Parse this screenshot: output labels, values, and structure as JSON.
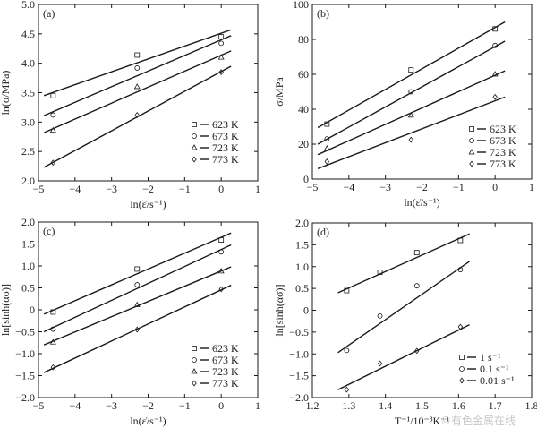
{
  "chart_data": [
    {
      "type": "scatter",
      "panel_label": "(a)",
      "xlabel": "ln(ε̇/s⁻¹)",
      "ylabel": "ln(σ/MPa)",
      "xlim": [
        -5,
        1
      ],
      "ylim": [
        2.0,
        5.0
      ],
      "xticks": [
        -5,
        -4,
        -3,
        -2,
        -1,
        0,
        1
      ],
      "xtick_labels": [
        "−5",
        "−4",
        "−3",
        "−2",
        "−1",
        "0",
        "1"
      ],
      "yticks": [
        2.0,
        2.5,
        3.0,
        3.5,
        4.0,
        4.5,
        5.0
      ],
      "ytick_labels": [
        "2.0",
        "2.5",
        "3.0",
        "3.5",
        "4.0",
        "4.5",
        "5.0"
      ],
      "legend_placement": "bottom-right",
      "x": [
        -4.6,
        -2.3,
        0
      ],
      "series": [
        {
          "name": "623 K",
          "marker": "square",
          "values": [
            3.45,
            4.14,
            4.45
          ],
          "fit": [
            [
              -4.85,
              3.45
            ],
            [
              0.27,
              4.57
            ]
          ]
        },
        {
          "name": "673 K",
          "marker": "circle",
          "values": [
            3.12,
            3.92,
            4.34
          ],
          "fit": [
            [
              -4.85,
              3.11
            ],
            [
              0.27,
              4.47
            ]
          ]
        },
        {
          "name": "723 K",
          "marker": "triangle",
          "values": [
            2.86,
            3.6,
            4.1
          ],
          "fit": [
            [
              -4.85,
              2.82
            ],
            [
              0.27,
              4.21
            ]
          ]
        },
        {
          "name": "773 K",
          "marker": "diamond",
          "values": [
            2.31,
            3.12,
            3.85
          ],
          "fit": [
            [
              -4.85,
              2.23
            ],
            [
              0.27,
              3.95
            ]
          ]
        }
      ]
    },
    {
      "type": "scatter",
      "panel_label": "(b)",
      "xlabel": "ln(ε̇/s⁻¹)",
      "ylabel": "σ/MPa",
      "xlim": [
        -5,
        1
      ],
      "ylim": [
        0,
        100
      ],
      "xticks": [
        -5,
        -4,
        -3,
        -2,
        -1,
        0,
        1
      ],
      "xtick_labels": [
        "−5",
        "−4",
        "−3",
        "−2",
        "−1",
        "0",
        "1"
      ],
      "yticks": [
        0,
        20,
        40,
        60,
        80,
        100
      ],
      "ytick_labels": [
        "0",
        "20",
        "40",
        "60",
        "80",
        "100"
      ],
      "legend_placement": "bottom-right",
      "x": [
        -4.6,
        -2.3,
        0
      ],
      "series": [
        {
          "name": "623 K",
          "marker": "square",
          "values": [
            31.5,
            62.5,
            86
          ],
          "fit": [
            [
              -4.85,
              29.5
            ],
            [
              0.27,
              90
            ]
          ]
        },
        {
          "name": "673 K",
          "marker": "circle",
          "values": [
            23,
            50,
            76.5
          ],
          "fit": [
            [
              -4.85,
              20
            ],
            [
              0.27,
              79
            ]
          ]
        },
        {
          "name": "723 K",
          "marker": "triangle",
          "values": [
            17.5,
            36.5,
            60
          ],
          "fit": [
            [
              -4.85,
              14
            ],
            [
              0.27,
              62
            ]
          ]
        },
        {
          "name": "773 K",
          "marker": "diamond",
          "values": [
            10,
            22.5,
            47
          ],
          "fit": [
            [
              -4.85,
              6
            ],
            [
              0.27,
              47
            ]
          ]
        }
      ]
    },
    {
      "type": "scatter",
      "panel_label": "(c)",
      "xlabel": "ln(ε̇/s⁻¹)",
      "ylabel": "ln[sinh(ασ)]",
      "xlim": [
        -5,
        1
      ],
      "ylim": [
        -2.0,
        2.0
      ],
      "xticks": [
        -5,
        -4,
        -3,
        -2,
        -1,
        0,
        1
      ],
      "xtick_labels": [
        "−5",
        "−4",
        "−3",
        "−2",
        "−1",
        "0",
        "1"
      ],
      "yticks": [
        -2.0,
        -1.5,
        -1.0,
        -0.5,
        0,
        0.5,
        1.0,
        1.5,
        2.0
      ],
      "ytick_labels": [
        "−2.0",
        "−1.5",
        "−1.0",
        "−0.5",
        "0",
        "0.5",
        "1.0",
        "1.5",
        "2.0"
      ],
      "legend_placement": "bottom-right",
      "x": [
        -4.6,
        -2.3,
        0
      ],
      "series": [
        {
          "name": "623 K",
          "marker": "square",
          "values": [
            -0.05,
            0.93,
            1.59
          ],
          "fit": [
            [
              -4.85,
              -0.1
            ],
            [
              0.27,
              1.75
            ]
          ]
        },
        {
          "name": "673 K",
          "marker": "circle",
          "values": [
            -0.44,
            0.57,
            1.32
          ],
          "fit": [
            [
              -4.85,
              -0.5
            ],
            [
              0.27,
              1.48
            ]
          ]
        },
        {
          "name": "723 K",
          "marker": "triangle",
          "values": [
            -0.74,
            0.11,
            0.88
          ],
          "fit": [
            [
              -4.85,
              -0.8
            ],
            [
              0.27,
              0.98
            ]
          ]
        },
        {
          "name": "773 K",
          "marker": "diamond",
          "values": [
            -1.31,
            -0.45,
            0.47
          ],
          "fit": [
            [
              -4.85,
              -1.43
            ],
            [
              0.27,
              0.56
            ]
          ]
        }
      ]
    },
    {
      "type": "scatter",
      "panel_label": "(d)",
      "xlabel": "T⁻¹/10⁻³K⁻¹",
      "ylabel": "ln[sinh(ασ)]",
      "xlim": [
        1.2,
        1.8
      ],
      "ylim": [
        -2.0,
        2.0
      ],
      "xticks": [
        1.2,
        1.3,
        1.4,
        1.5,
        1.6,
        1.7,
        1.8
      ],
      "xtick_labels": [
        "1.2",
        "1.3",
        "1.4",
        "1.5",
        "1.6",
        "1.7",
        "1.8"
      ],
      "yticks": [
        -2.0,
        -1.5,
        -1.0,
        -0.5,
        0,
        0.5,
        1.0,
        1.5,
        2.0
      ],
      "ytick_labels": [
        "−2.0",
        "−1.5",
        "−1.0",
        "−0.5",
        "0",
        "0.5",
        "1.0",
        "1.5",
        "2.0"
      ],
      "legend_placement": "bottom-right",
      "x": [
        1.294,
        1.385,
        1.486,
        1.605
      ],
      "series": [
        {
          "name": "1 s⁻¹",
          "marker": "square",
          "values": [
            0.45,
            0.87,
            1.32,
            1.6
          ],
          "fit": [
            [
              1.27,
              0.4
            ],
            [
              1.63,
              1.75
            ]
          ]
        },
        {
          "name": "0.1 s⁻¹",
          "marker": "circle",
          "values": [
            -0.92,
            -0.13,
            0.56,
            0.93
          ],
          "fit": [
            [
              1.27,
              -0.97
            ],
            [
              1.63,
              1.12
            ]
          ]
        },
        {
          "name": "0.01 s⁻¹",
          "marker": "diamond",
          "values": [
            -1.82,
            -1.22,
            -0.93,
            -0.38
          ],
          "fit": [
            [
              1.27,
              -1.82
            ],
            [
              1.63,
              -0.33
            ]
          ]
        }
      ]
    }
  ],
  "watermark": "©有色金属在线",
  "colors": {
    "ink": "#1a1a1a",
    "watermark": "#c8c8c8"
  }
}
